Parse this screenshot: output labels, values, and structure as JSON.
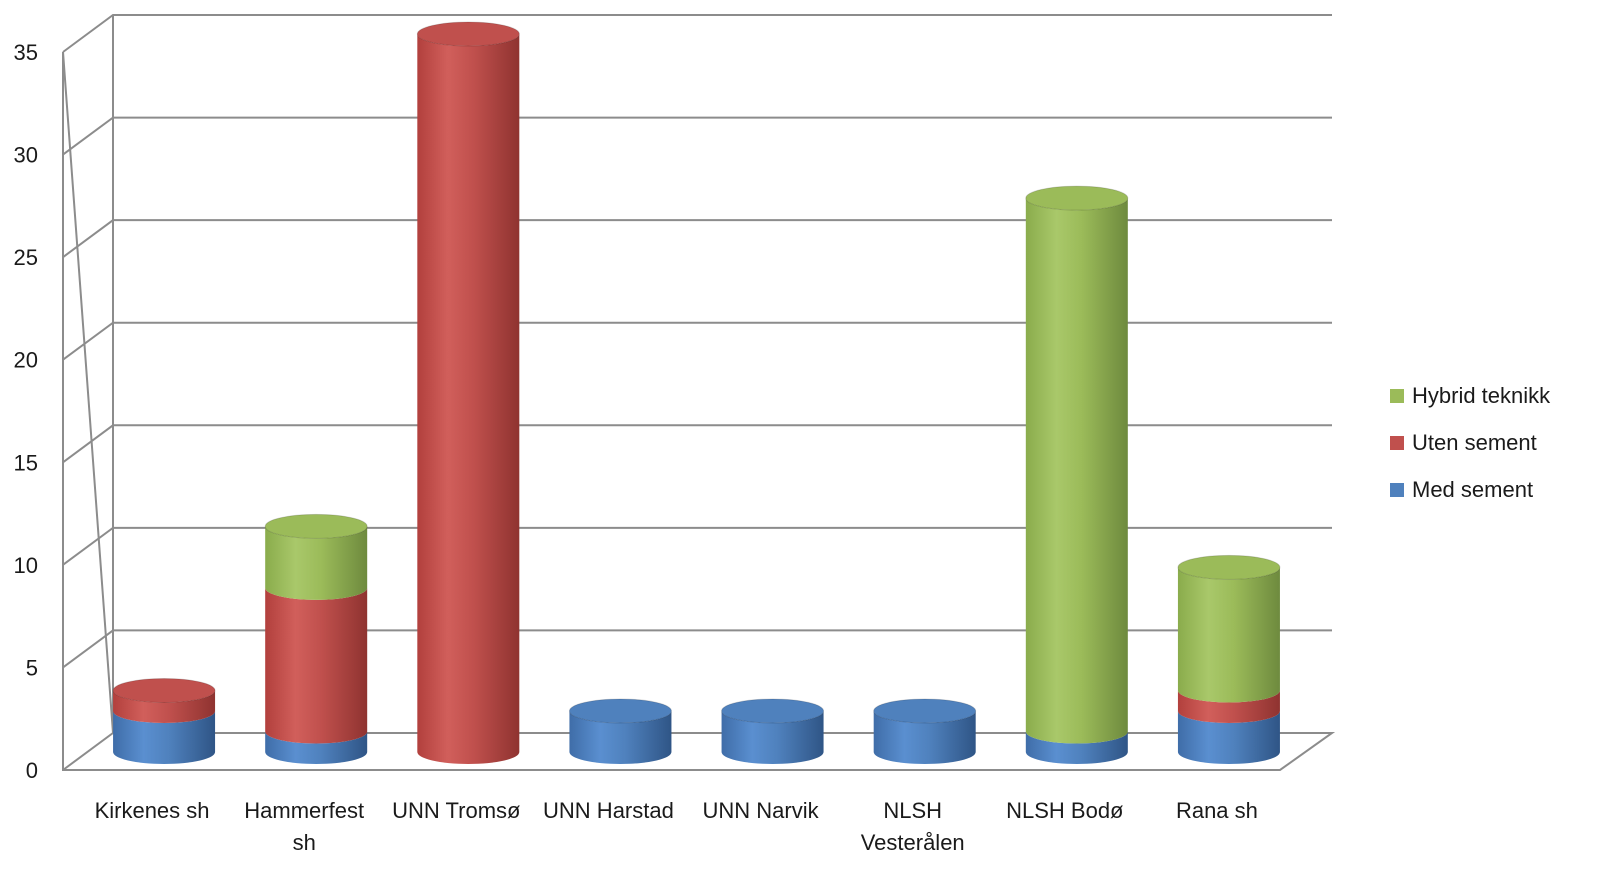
{
  "chart_data": {
    "type": "bar",
    "style": "3d-stacked-cylinder",
    "categories": [
      [
        "Kirkenes sh"
      ],
      [
        "Hammerfest",
        "sh"
      ],
      [
        "UNN Tromsø"
      ],
      [
        "UNN Harstad"
      ],
      [
        "UNN Narvik"
      ],
      [
        "NLSH",
        "Vesterålen"
      ],
      [
        "NLSH Bodø"
      ],
      [
        "Rana sh"
      ]
    ],
    "series": [
      {
        "name": "Med sement",
        "color": "#4F81BD",
        "values": [
          2,
          1,
          0,
          2,
          2,
          2,
          1,
          2
        ]
      },
      {
        "name": "Uten sement",
        "color": "#C0504D",
        "values": [
          1,
          7,
          35,
          0,
          0,
          0,
          0,
          1
        ]
      },
      {
        "name": "Hybrid teknikk",
        "color": "#9BBB59",
        "values": [
          0,
          3,
          0,
          0,
          0,
          0,
          26,
          6
        ]
      }
    ],
    "ylim": [
      0,
      35
    ],
    "yticks": [
      "0",
      "5",
      "10",
      "15",
      "20",
      "25",
      "30",
      "35"
    ],
    "grid": true,
    "legend_position": "right",
    "title": "",
    "xlabel": "",
    "ylabel": ""
  }
}
